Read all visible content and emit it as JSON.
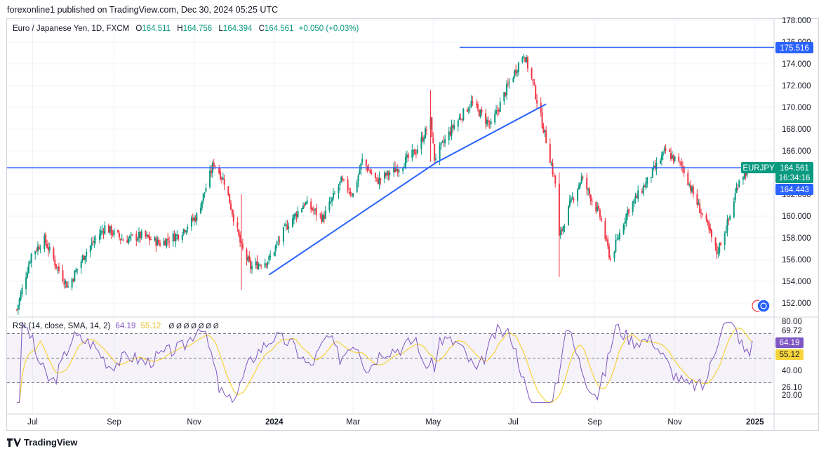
{
  "header": {
    "published": "forexonline1 published on TradingView.com, Dec 30, 2024 05:25 UTC"
  },
  "legend": {
    "symbol": "Euro / Japanese Yen, 1D, FXCM",
    "o_label": "O",
    "o": "164.511",
    "h_label": "H",
    "h": "164.756",
    "l_label": "L",
    "l": "164.394",
    "c_label": "C",
    "c": "164.561",
    "change": "+0.050 (+0.03%)"
  },
  "rsi_legend": {
    "label": "RSI (14, close, SMA, 14, 2)",
    "rsi": "64.19",
    "sma": "55.12",
    "icons": "Ø Ø Ø Ø Ø Ø Ø"
  },
  "price_tags": {
    "top_line": "175.516",
    "symbol_tag": "EURJPY",
    "last_price": "164.561",
    "countdown": "16:34:16",
    "h_line": "164.443"
  },
  "rsi_tags": {
    "upper": "69.72",
    "rsi": "64.19",
    "sma": "55.12",
    "lower": "26.10"
  },
  "footer": {
    "brand": "TradingView"
  },
  "colors": {
    "up": "#089981",
    "down": "#f23645",
    "line": "#2962ff",
    "rsi": "#7e57c2",
    "rsi_ma": "#f7d43b"
  },
  "chart_data": [
    {
      "type": "candlestick",
      "symbol": "EURJPY",
      "interval": "1D",
      "y_axis": {
        "ticks": [
          152,
          154,
          156,
          158,
          160,
          162,
          164,
          166,
          168,
          170,
          172,
          174,
          176,
          178
        ],
        "tick_labels": [
          "152.000",
          "154.000",
          "156.000",
          "158.000",
          "160.000",
          "162.000",
          "164.000",
          "166.000",
          "168.000",
          "170.000",
          "172.000",
          "174.000",
          "176.000",
          "178.000"
        ],
        "ylim": [
          151.0,
          179.0
        ]
      },
      "x_axis": {
        "labels": [
          "Jul",
          "Sep",
          "Nov",
          "2024",
          "Mar",
          "May",
          "Jul",
          "Sep",
          "Nov",
          "2025"
        ]
      },
      "approx_close_path": [
        [
          "2023-06-19",
          151.4
        ],
        [
          "2023-06-30",
          156.5
        ],
        [
          "2023-07-10",
          157.8
        ],
        [
          "2023-07-20",
          155.2
        ],
        [
          "2023-07-28",
          153.5
        ],
        [
          "2023-08-10",
          156.6
        ],
        [
          "2023-08-25",
          159.0
        ],
        [
          "2023-09-08",
          157.8
        ],
        [
          "2023-09-22",
          158.2
        ],
        [
          "2023-10-06",
          157.5
        ],
        [
          "2023-10-20",
          158.3
        ],
        [
          "2023-11-03",
          160.0
        ],
        [
          "2023-11-16",
          164.9
        ],
        [
          "2023-11-24",
          163.2
        ],
        [
          "2023-12-07",
          157.1
        ],
        [
          "2023-12-14",
          155.3
        ],
        [
          "2023-12-28",
          156.0
        ],
        [
          "2024-01-10",
          159.0
        ],
        [
          "2024-01-24",
          161.2
        ],
        [
          "2024-02-07",
          159.8
        ],
        [
          "2024-02-21",
          163.2
        ],
        [
          "2024-03-01",
          162.0
        ],
        [
          "2024-03-08",
          165.1
        ],
        [
          "2024-03-19",
          163.2
        ],
        [
          "2024-04-05",
          164.5
        ],
        [
          "2024-04-18",
          166.0
        ],
        [
          "2024-04-29",
          168.7
        ],
        [
          "2024-05-02",
          165.3
        ],
        [
          "2024-05-16",
          168.2
        ],
        [
          "2024-05-30",
          170.4
        ],
        [
          "2024-06-14",
          168.3
        ],
        [
          "2024-06-27",
          172.0
        ],
        [
          "2024-07-09",
          175.0
        ],
        [
          "2024-07-16",
          172.2
        ],
        [
          "2024-07-26",
          167.0
        ],
        [
          "2024-08-02",
          163.0
        ],
        [
          "2024-08-05",
          158.0
        ],
        [
          "2024-08-13",
          161.0
        ],
        [
          "2024-08-22",
          163.5
        ],
        [
          "2024-09-05",
          160.0
        ],
        [
          "2024-09-13",
          156.0
        ],
        [
          "2024-09-26",
          160.5
        ],
        [
          "2024-10-10",
          163.0
        ],
        [
          "2024-10-25",
          166.0
        ],
        [
          "2024-11-07",
          164.5
        ],
        [
          "2024-11-15",
          162.0
        ],
        [
          "2024-11-26",
          159.0
        ],
        [
          "2024-12-03",
          156.6
        ],
        [
          "2024-12-13",
          160.0
        ],
        [
          "2024-12-20",
          163.5
        ],
        [
          "2024-12-30",
          164.561
        ]
      ],
      "horizontal_lines": [
        175.516,
        164.443
      ],
      "trendlines": [
        {
          "from": [
            "2023-12-28",
            154.6
          ],
          "to": [
            "2024-05-03",
            164.9
          ]
        },
        {
          "from": [
            "2024-05-03",
            164.9
          ],
          "to": [
            "2024-07-26",
            170.3
          ]
        }
      ]
    },
    {
      "type": "line",
      "name": "RSI (14, close, SMA, 14, 2)",
      "y_axis": {
        "tick_labels": [
          "20.00",
          "40.00",
          "80.00"
        ],
        "ticks": [
          20,
          40,
          80
        ],
        "ylim": [
          17,
          82
        ]
      },
      "bands": {
        "upper": 70,
        "middle": 50,
        "lower": 30
      },
      "series": [
        {
          "name": "RSI",
          "last": 64.19
        },
        {
          "name": "RSI-based MA",
          "last": 55.12
        }
      ]
    }
  ]
}
